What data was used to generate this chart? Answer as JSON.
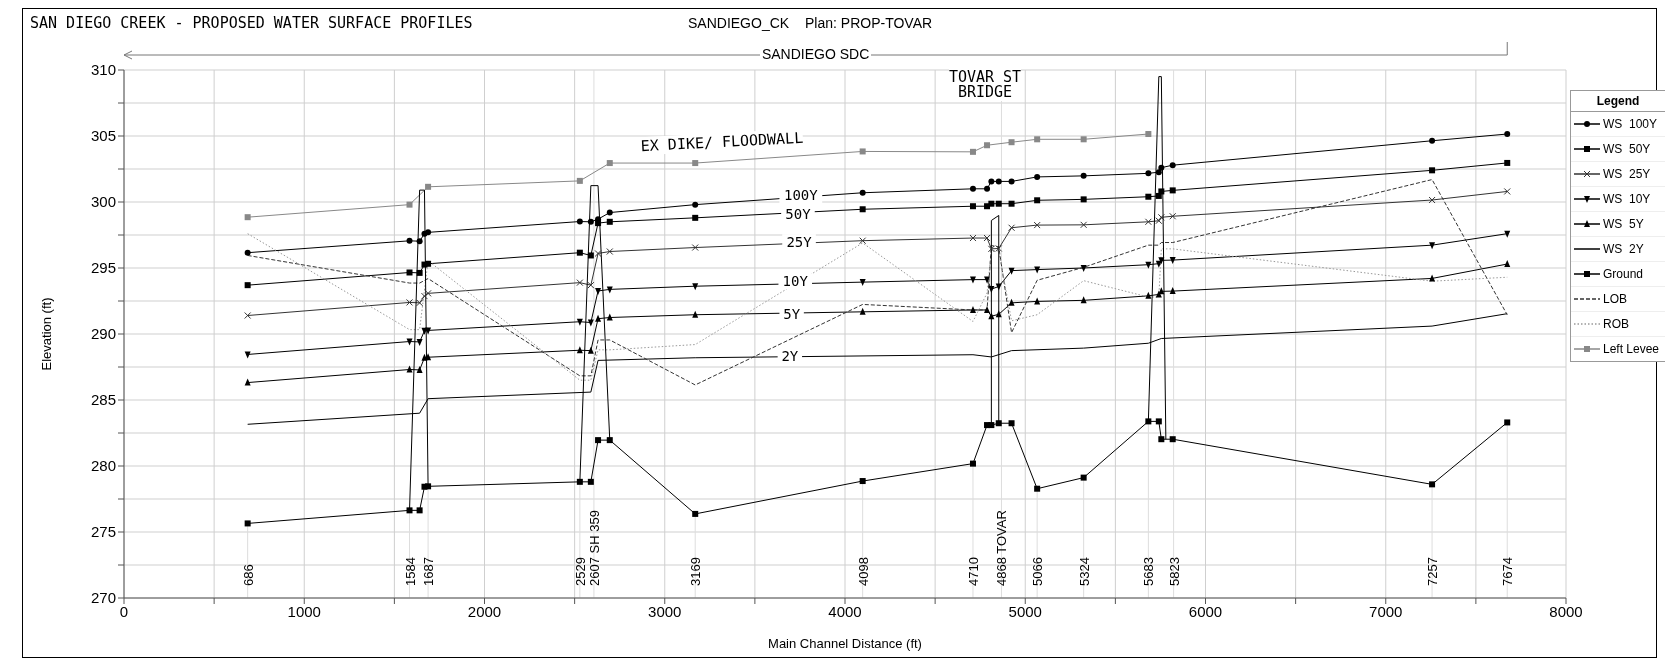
{
  "chart_data": {
    "type": "line",
    "title": "SAN DIEGO CREEK - PROPOSED WATER SURFACE PROFILES",
    "subtitle": "SANDIEGO_CK",
    "xlabel": "Main Channel Distance (ft)",
    "ylabel": "Elevation (ft)",
    "legend_title": "Legend",
    "legend": "right",
    "grid": true,
    "xlim": [
      0,
      8000
    ],
    "xticks": [
      0,
      {
        "value": 500,
        "label": null
      },
      1000,
      {
        "value": 1500,
        "label": null
      },
      2000,
      {
        "value": 2500,
        "label": null
      },
      3000,
      {
        "value": 3500,
        "label": null
      },
      4000,
      {
        "value": 4500,
        "label": null
      },
      5000,
      {
        "value": 5500,
        "label": null
      },
      6000,
      {
        "value": 6500,
        "label": null
      },
      7000,
      {
        "value": 7500,
        "label": null
      },
      8000
    ],
    "ylim": [
      270,
      310
    ],
    "yticks": [
      270,
      {
        "value": 272.5,
        "label": null
      },
      275,
      {
        "value": 277.5,
        "label": null
      },
      280,
      {
        "value": 282.5,
        "label": null
      },
      285,
      {
        "value": 287.5,
        "label": null
      },
      290,
      {
        "value": 292.5,
        "label": null
      },
      295,
      {
        "value": 297.5,
        "label": null
      },
      300,
      {
        "value": 302.5,
        "label": null
      },
      305,
      {
        "value": 307.5,
        "label": null
      },
      310
    ],
    "series": [
      {
        "name": "WS  100Y",
        "color": "#000000",
        "marker": "circle",
        "line_style": "solid",
        "x": [
          686,
          1584,
          1640,
          1667,
          1687,
          2529,
          2590,
          2630,
          2695,
          3169,
          4098,
          4710,
          4788,
          4812,
          4853,
          4924,
          5066,
          5324,
          5683,
          5741,
          5755,
          5818,
          7257,
          7674
        ],
        "values": [
          296.16,
          297.06,
          297.03,
          297.6,
          297.7,
          298.52,
          298.5,
          298.7,
          299.2,
          299.8,
          300.7,
          301.0,
          301.0,
          301.56,
          301.56,
          301.56,
          301.9,
          301.98,
          302.17,
          302.26,
          302.6,
          302.79,
          304.64,
          305.15
        ]
      },
      {
        "name": "WS  50Y",
        "color": "#000000",
        "marker": "square",
        "line_style": "solid",
        "x": [
          686,
          1584,
          1640,
          1667,
          1687,
          2529,
          2590,
          2630,
          2695,
          3169,
          4098,
          4710,
          4788,
          4812,
          4853,
          4924,
          5066,
          5324,
          5683,
          5741,
          5755,
          5818,
          7257,
          7674
        ],
        "values": [
          293.7,
          294.66,
          294.63,
          295.26,
          295.32,
          296.16,
          295.95,
          298.4,
          298.5,
          298.8,
          299.45,
          299.68,
          299.68,
          299.87,
          299.87,
          299.87,
          300.13,
          300.2,
          300.4,
          300.46,
          300.8,
          300.88,
          302.4,
          302.96
        ]
      },
      {
        "name": "WS  25Y",
        "color": "#333333",
        "marker": "cross",
        "line_style": "solid",
        "x": [
          686,
          1584,
          1640,
          1667,
          1687,
          2529,
          2590,
          2630,
          2695,
          3169,
          4098,
          4710,
          4788,
          4812,
          4853,
          4924,
          5066,
          5324,
          5683,
          5741,
          5755,
          5818,
          7257,
          7674
        ],
        "values": [
          291.4,
          292.39,
          292.36,
          292.87,
          293.08,
          293.89,
          293.7,
          296.1,
          296.25,
          296.55,
          297.07,
          297.27,
          297.27,
          296.45,
          296.48,
          298.05,
          298.25,
          298.27,
          298.5,
          298.58,
          298.84,
          298.92,
          300.15,
          300.8
        ]
      },
      {
        "name": "WS  10Y",
        "color": "#000000",
        "marker": "triangle_down",
        "line_style": "solid",
        "x": [
          686,
          1584,
          1640,
          1667,
          1687,
          2529,
          2590,
          2630,
          2695,
          3169,
          4098,
          4710,
          4788,
          4812,
          4853,
          4924,
          5066,
          5324,
          5683,
          5741,
          5755,
          5818,
          7257,
          7674
        ],
        "values": [
          288.45,
          289.43,
          289.4,
          290.24,
          290.27,
          290.93,
          290.87,
          293.26,
          293.38,
          293.62,
          293.93,
          294.12,
          294.12,
          293.4,
          293.6,
          294.8,
          294.88,
          295.0,
          295.25,
          295.33,
          295.58,
          295.6,
          296.73,
          297.6
        ]
      },
      {
        "name": "WS  5Y",
        "color": "#000000",
        "marker": "triangle",
        "line_style": "solid",
        "x": [
          686,
          1584,
          1640,
          1667,
          1687,
          2529,
          2590,
          2630,
          2695,
          3169,
          4098,
          4710,
          4788,
          4812,
          4853,
          4924,
          5066,
          5324,
          5683,
          5741,
          5755,
          5818,
          7257,
          7674
        ],
        "values": [
          286.32,
          287.31,
          287.28,
          288.2,
          288.24,
          288.77,
          288.74,
          291.16,
          291.25,
          291.46,
          291.68,
          291.82,
          291.82,
          291.35,
          291.49,
          292.36,
          292.47,
          292.55,
          292.89,
          293.0,
          293.23,
          293.25,
          294.21,
          295.3
        ]
      },
      {
        "name": "WS  2Y",
        "color": "#000000",
        "marker": "none",
        "line_style": "solid",
        "x": [
          686,
          1640,
          1687,
          2590,
          2630,
          3169,
          4710,
          4812,
          4924,
          5324,
          5683,
          5755,
          7257,
          7674
        ],
        "values": [
          283.16,
          284.0,
          285.1,
          285.6,
          288.0,
          288.2,
          288.43,
          288.26,
          288.74,
          288.93,
          289.3,
          289.66,
          290.6,
          291.54
        ]
      },
      {
        "name": "Ground",
        "color": "#000000",
        "marker": "square",
        "line_style": "solid",
        "x": [
          686,
          1584,
          1640,
          1667,
          1687,
          2529,
          2590,
          2630,
          2695,
          3169,
          4098,
          4710,
          4788,
          4812,
          4853,
          4924,
          5066,
          5324,
          5683,
          5741,
          5755,
          5818,
          7257,
          7674
        ],
        "values": [
          275.65,
          276.64,
          276.64,
          278.43,
          278.46,
          278.8,
          278.8,
          281.96,
          281.96,
          276.37,
          278.86,
          280.18,
          283.1,
          283.1,
          283.24,
          283.24,
          278.28,
          279.12,
          283.38,
          283.38,
          282.03,
          282.03,
          278.61,
          283.3
        ]
      },
      {
        "name": "LOB",
        "color": "#333333",
        "marker": "none",
        "line_style": "dashed",
        "x": [
          686,
          1584,
          1640,
          1687,
          2529,
          2590,
          2630,
          2695,
          3169,
          4098,
          4710,
          4788,
          4812,
          4853,
          4924,
          5066,
          5324,
          5683,
          5741,
          5755,
          5818,
          7257,
          7674
        ],
        "values": [
          295.95,
          293.86,
          293.86,
          294.2,
          286.83,
          286.83,
          289.55,
          289.55,
          286.14,
          292.24,
          291.82,
          291.82,
          296.7,
          296.6,
          290.1,
          294.07,
          295.05,
          296.73,
          296.73,
          296.93,
          296.93,
          301.7,
          291.45
        ]
      },
      {
        "name": "ROB",
        "color": "#999999",
        "marker": "none",
        "line_style": "dotted",
        "x": [
          686,
          1584,
          1640,
          1687,
          2529,
          2590,
          2630,
          2695,
          3169,
          4098,
          4710,
          4788,
          4812,
          4853,
          4924,
          5066,
          5324,
          5683,
          5741,
          5755,
          5818,
          7257,
          7674
        ],
        "values": [
          297.6,
          290.33,
          290.33,
          295.56,
          286.5,
          286.5,
          288.8,
          288.8,
          289.2,
          296.9,
          290.95,
          293.1,
          296.3,
          296.3,
          291.0,
          291.46,
          294.04,
          292.8,
          292.8,
          296.45,
          296.45,
          294.0,
          294.3
        ]
      },
      {
        "name": "Left Levee",
        "color": "#888888",
        "marker": "square",
        "line_style": "solid",
        "x": [
          686,
          1584,
          1687,
          2529,
          2695,
          3169,
          4098,
          4710,
          4788,
          4924,
          5066,
          5324,
          5683
        ],
        "values": [
          298.85,
          299.8,
          301.15,
          301.6,
          302.95,
          302.95,
          303.83,
          303.8,
          304.3,
          304.53,
          304.75,
          304.75,
          305.15
        ]
      },
      {
        "color": "#000000",
        "marker": "none",
        "line_style": "solid",
        "x": [
          1584,
          1640,
          1667,
          1687
        ],
        "values": [
          276.64,
          300.9,
          300.9,
          278.46
        ]
      },
      {
        "color": "#000000",
        "marker": "none",
        "line_style": "solid",
        "x": [
          2529,
          2590,
          2630,
          2695
        ],
        "values": [
          278.8,
          301.24,
          301.24,
          281.96
        ]
      },
      {
        "color": "#000000",
        "marker": "none",
        "line_style": "solid",
        "x": [
          4812,
          4812,
          4853,
          4853
        ],
        "values": [
          283.1,
          298.6,
          298.98,
          283.24
        ]
      },
      {
        "color": "#000000",
        "marker": "none",
        "line_style": "solid",
        "x": [
          5683,
          5741,
          5755,
          5780
        ],
        "values": [
          283.38,
          309.5,
          309.5,
          282.03
        ]
      }
    ],
    "ref_lines": [
      {
        "axis": "x",
        "value": 686,
        "label": "686"
      },
      {
        "axis": "x",
        "value": 1584,
        "label": "1584"
      },
      {
        "axis": "x",
        "value": 1687,
        "label": "1687"
      },
      {
        "axis": "x",
        "value": 2529,
        "label": "2529"
      },
      {
        "axis": "x",
        "value": 2607,
        "label": "2607 SH 359"
      },
      {
        "axis": "x",
        "value": 3169,
        "label": "3169"
      },
      {
        "axis": "x",
        "value": 4098,
        "label": "4098"
      },
      {
        "axis": "x",
        "value": 4710,
        "label": "4710"
      },
      {
        "axis": "x",
        "value": 4868,
        "label": "4868 TOVAR"
      },
      {
        "axis": "x",
        "value": 5066,
        "label": "5066"
      },
      {
        "axis": "x",
        "value": 5324,
        "label": "5324"
      },
      {
        "axis": "x",
        "value": 5683,
        "label": "5683"
      },
      {
        "axis": "x",
        "value": 5823,
        "label": "5823"
      },
      {
        "axis": "x",
        "value": 7257,
        "label": "7257"
      },
      {
        "axis": "x",
        "value": 7674,
        "label": "7674"
      }
    ],
    "annotations": [
      "Plan: PROP-TOVAR",
      "SANDIEGO SDC",
      "EX DIKE/ FLOODWALL",
      "TOVAR ST BRIDGE",
      {
        "text": "100Y",
        "x": 3755,
        "y": 300.5
      },
      {
        "text": "50Y",
        "x": 3739,
        "y": 299.1
      },
      {
        "text": "25Y",
        "x": 3745,
        "y": 296.96
      },
      {
        "text": "10Y",
        "x": 3724,
        "y": 293.98
      },
      {
        "text": "5Y",
        "x": 3704,
        "y": 291.54
      },
      {
        "text": "2Y",
        "x": 3694,
        "y": 288.37
      }
    ]
  }
}
